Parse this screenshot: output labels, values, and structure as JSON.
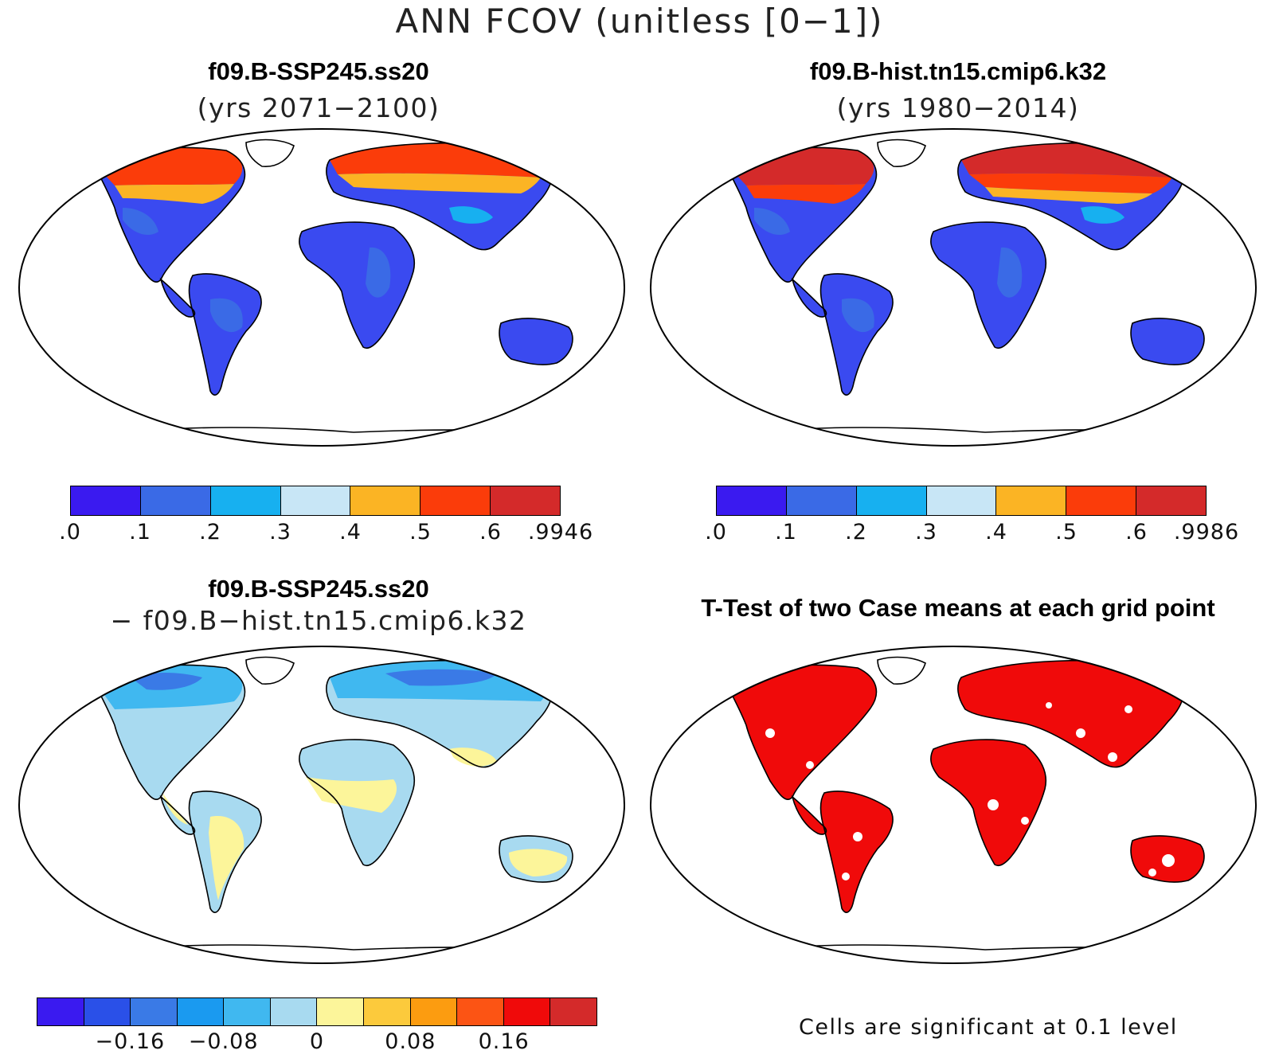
{
  "title": "ANN FCOV (unitless [0−1])",
  "panels": {
    "top_left": {
      "title": "f09.B-SSP245.ss20",
      "subtitle": "(yrs 2071−2100)"
    },
    "top_right": {
      "title": "f09.B-hist.tn15.cmip6.k32",
      "subtitle": "(yrs 1980−2014)"
    },
    "bottom_left": {
      "title": "f09.B-SSP245.ss20",
      "subtitle": "− f09.B−hist.tn15.cmip6.k32"
    },
    "bottom_right": {
      "title": "T-Test of two Case means at each grid point",
      "note": "Cells are significant at 0.1 level"
    }
  },
  "colorbars": {
    "cb1": {
      "colors": [
        "#3a1af0",
        "#3a6ae6",
        "#17b0f0",
        "#c8e6f6",
        "#fbb424",
        "#fb3c0a",
        "#d42a2a"
      ],
      "ticks": [
        ".0",
        ".1",
        ".2",
        ".3",
        ".4",
        ".5",
        ".6",
        ".9946"
      ]
    },
    "cb2": {
      "colors": [
        "#3a1af0",
        "#3a6ae6",
        "#17b0f0",
        "#c8e6f6",
        "#fbb424",
        "#fb3c0a",
        "#d42a2a"
      ],
      "ticks": [
        ".0",
        ".1",
        ".2",
        ".3",
        ".4",
        ".5",
        ".6",
        ".9986"
      ]
    },
    "cb3": {
      "colors": [
        "#3a1af0",
        "#2a50e8",
        "#3a7ae6",
        "#1a9af0",
        "#40b8f0",
        "#a8daf0",
        "#fcf59a",
        "#fcca3c",
        "#fc9c10",
        "#fc5414",
        "#f00a0a",
        "#d42a2a"
      ],
      "ticks": [
        "−0.16",
        "−0.08",
        "0",
        "0.08",
        "0.16"
      ]
    }
  },
  "chart_data": [
    {
      "type": "heatmap",
      "title": "f09.B-SSP245.ss20",
      "subtitle": "(yrs 2071−2100)",
      "colorbar_levels": [
        0.0,
        0.1,
        0.2,
        0.3,
        0.4,
        0.5,
        0.6,
        0.9946
      ]
    },
    {
      "type": "heatmap",
      "title": "f09.B-hist.tn15.cmip6.k32",
      "subtitle": "(yrs 1980−2014)",
      "colorbar_levels": [
        0.0,
        0.1,
        0.2,
        0.3,
        0.4,
        0.5,
        0.6,
        0.9986
      ]
    },
    {
      "type": "heatmap",
      "title": "f09.B-SSP245.ss20 − f09.B−hist.tn15.cmip6.k32",
      "colorbar_ticks": [
        -0.16,
        -0.08,
        0,
        0.08,
        0.16
      ]
    },
    {
      "type": "heatmap",
      "title": "T-Test of two Case means at each grid point",
      "note": "Cells are significant at 0.1 level"
    }
  ]
}
